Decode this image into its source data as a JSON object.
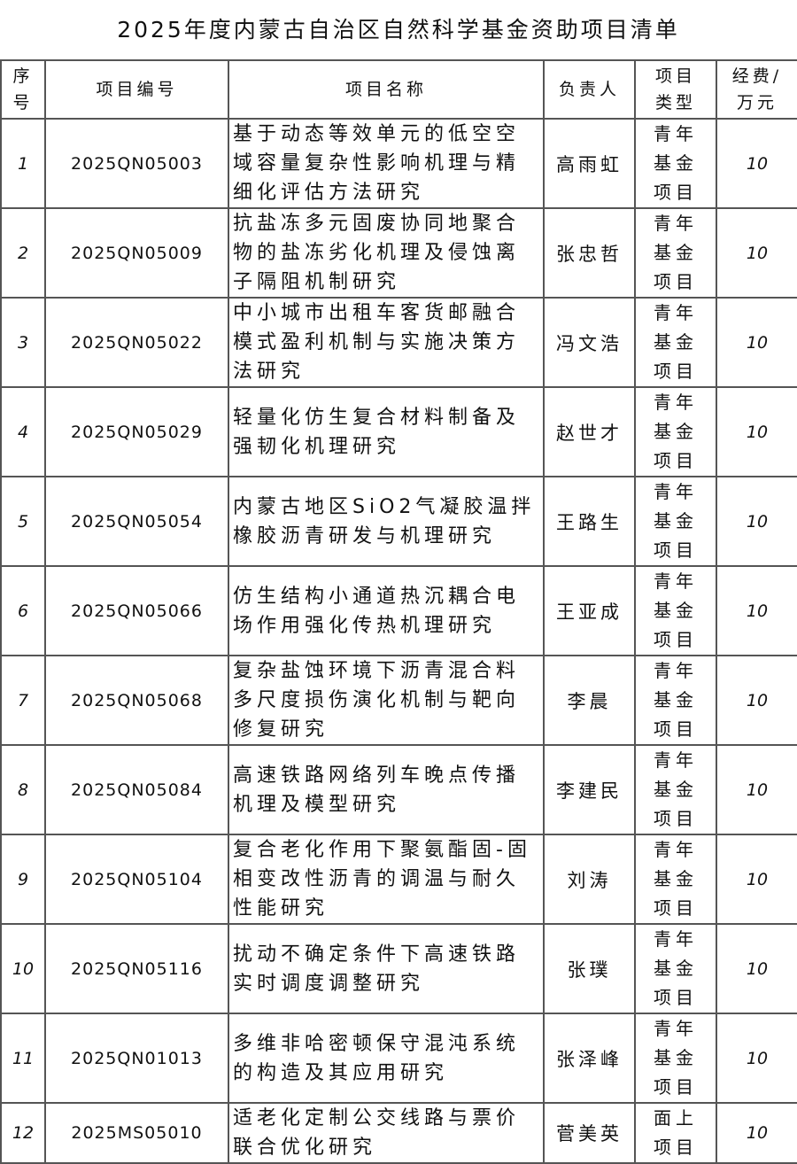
{
  "title": "2025年度内蒙古自治区自然科学基金资助项目清单",
  "headers": [
    "序号",
    "项目编号",
    "项目名称",
    "负责人",
    "项目类型",
    "经费/万元"
  ],
  "rows": [
    {
      "idx": "1",
      "code": "2025QN05003",
      "name": "基于动态等效单元的低空空域容量复杂性影响机理与精细化评估方法研究",
      "person": "高雨虹",
      "type": "青年基金项目",
      "fund": "10"
    },
    {
      "idx": "2",
      "code": "2025QN05009",
      "name": "抗盐冻多元固废协同地聚合物的盐冻劣化机理及侵蚀离子隔阻机制研究",
      "person": "张忠哲",
      "type": "青年基金项目",
      "fund": "10"
    },
    {
      "idx": "3",
      "code": "2025QN05022",
      "name": "中小城市出租车客货邮融合模式盈利机制与实施决策方法研究",
      "person": "冯文浩",
      "type": "青年基金项目",
      "fund": "10"
    },
    {
      "idx": "4",
      "code": "2025QN05029",
      "name": "轻量化仿生复合材料制备及强韧化机理研究",
      "person": "赵世才",
      "type": "青年基金项目",
      "fund": "10"
    },
    {
      "idx": "5",
      "code": "2025QN05054",
      "name": "内蒙古地区SiO2气凝胶温拌橡胶沥青研发与机理研究",
      "person": "王路生",
      "type": "青年基金项目",
      "fund": "10"
    },
    {
      "idx": "6",
      "code": "2025QN05066",
      "name": "仿生结构小通道热沉耦合电场作用强化传热机理研究",
      "person": "王亚成",
      "type": "青年基金项目",
      "fund": "10"
    },
    {
      "idx": "7",
      "code": "2025QN05068",
      "name": "复杂盐蚀环境下沥青混合料多尺度损伤演化机制与靶向修复研究",
      "person": "李晨",
      "type": "青年基金项目",
      "fund": "10"
    },
    {
      "idx": "8",
      "code": "2025QN05084",
      "name": "高速铁路网络列车晚点传播机理及模型研究",
      "person": "李建民",
      "type": "青年基金项目",
      "fund": "10"
    },
    {
      "idx": "9",
      "code": "2025QN05104",
      "name": "复合老化作用下聚氨酯固-固相变改性沥青的调温与耐久性能研究",
      "person": "刘涛",
      "type": "青年基金项目",
      "fund": "10"
    },
    {
      "idx": "10",
      "code": "2025QN05116",
      "name": "扰动不确定条件下高速铁路实时调度调整研究",
      "person": "张璞",
      "type": "青年基金项目",
      "fund": "10"
    },
    {
      "idx": "11",
      "code": "2025QN01013",
      "name": "多维非哈密顿保守混沌系统的构造及其应用研究",
      "person": "张泽峰",
      "type": "青年基金项目",
      "fund": "10"
    },
    {
      "idx": "12",
      "code": "2025MS05010",
      "name": "适老化定制公交线路与票价联合优化研究",
      "person": "菅美英",
      "type": "面上项目",
      "fund": "10"
    }
  ]
}
